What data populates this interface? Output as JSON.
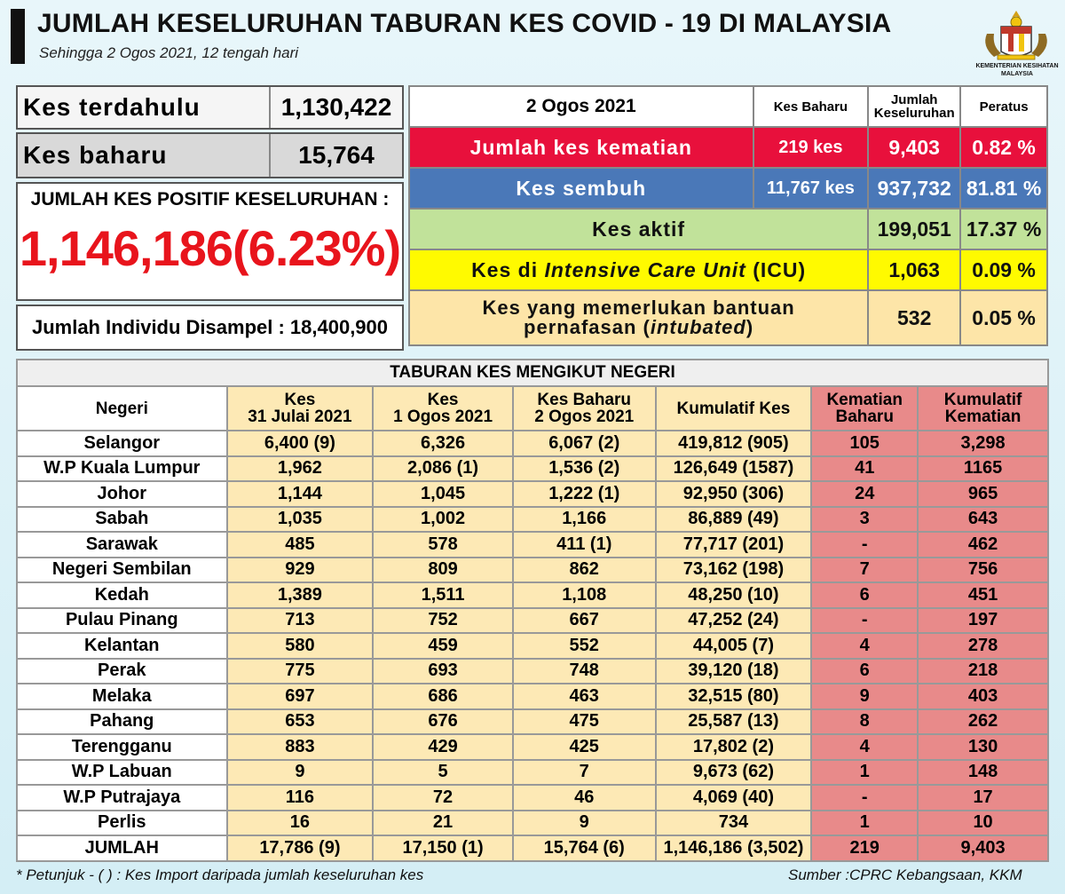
{
  "header": {
    "title": "JUMLAH KESELURUHAN TABURAN KES COVID - 19 DI MALAYSIA",
    "subtitle": "Sehingga 2 Ogos 2021, 12 tengah hari",
    "logo_caption": "KEMENTERIAN KESIHATAN MALAYSIA"
  },
  "left": {
    "prev_label": "Kes terdahulu",
    "prev_value": "1,130,422",
    "new_label": "Kes baharu",
    "new_value": "15,764",
    "positive_title": "JUMLAH KES POSITIF KESELURUHAN :",
    "positive_value": "1,146,186(6.23%)",
    "sample_text": "Jumlah Individu Disampel : 18,400,900"
  },
  "summary": {
    "date": "2 Ogos 2021",
    "col_new": "Kes Baharu",
    "col_total": "Jumlah Keseluruhan",
    "col_pct": "Peratus",
    "death": {
      "label": "Jumlah kes kematian",
      "new": "219 kes",
      "total": "9,403",
      "pct": "0.82 %"
    },
    "recovered": {
      "label": "Kes sembuh",
      "new": "11,767 kes",
      "total": "937,732",
      "pct": "81.81 %"
    },
    "active": {
      "label": "Kes aktif",
      "total": "199,051",
      "pct": "17.37 %"
    },
    "icu": {
      "label_a": "Kes di ",
      "label_b": "Intensive Care Unit",
      "label_c": " (ICU)",
      "total": "1,063",
      "pct": "0.09 %"
    },
    "intubated": {
      "label_a": "Kes yang memerlukan bantuan",
      "label_b": "pernafasan (",
      "label_c": "intubated",
      "label_d": ")",
      "total": "532",
      "pct": "0.05 %"
    }
  },
  "states": {
    "caption": "TABURAN KES MENGIKUT NEGERI",
    "headers": {
      "negeri": "Negeri",
      "c1a": "Kes",
      "c1b": "31 Julai 2021",
      "c2a": "Kes",
      "c2b": "1 Ogos 2021",
      "c3a": "Kes Baharu",
      "c3b": "2 Ogos 2021",
      "c4": "Kumulatif Kes",
      "c5a": "Kematian",
      "c5b": "Baharu",
      "c6a": "Kumulatif",
      "c6b": "Kematian"
    },
    "rows": [
      [
        "Selangor",
        "6,400 (9)",
        "6,326",
        "6,067 (2)",
        "419,812 (905)",
        "105",
        "3,298"
      ],
      [
        "W.P Kuala Lumpur",
        "1,962",
        "2,086 (1)",
        "1,536 (2)",
        "126,649 (1587)",
        "41",
        "1165"
      ],
      [
        "Johor",
        "1,144",
        "1,045",
        "1,222 (1)",
        "92,950 (306)",
        "24",
        "965"
      ],
      [
        "Sabah",
        "1,035",
        "1,002",
        "1,166",
        "86,889 (49)",
        "3",
        "643"
      ],
      [
        "Sarawak",
        "485",
        "578",
        "411 (1)",
        "77,717 (201)",
        "-",
        "462"
      ],
      [
        "Negeri Sembilan",
        "929",
        "809",
        "862",
        "73,162 (198)",
        "7",
        "756"
      ],
      [
        "Kedah",
        "1,389",
        "1,511",
        "1,108",
        "48,250 (10)",
        "6",
        "451"
      ],
      [
        "Pulau Pinang",
        "713",
        "752",
        "667",
        "47,252 (24)",
        "-",
        "197"
      ],
      [
        "Kelantan",
        "580",
        "459",
        "552",
        "44,005 (7)",
        "4",
        "278"
      ],
      [
        "Perak",
        "775",
        "693",
        "748",
        "39,120 (18)",
        "6",
        "218"
      ],
      [
        "Melaka",
        "697",
        "686",
        "463",
        "32,515 (80)",
        "9",
        "403"
      ],
      [
        "Pahang",
        "653",
        "676",
        "475",
        "25,587 (13)",
        "8",
        "262"
      ],
      [
        "Terengganu",
        "883",
        "429",
        "425",
        "17,802 (2)",
        "4",
        "130"
      ],
      [
        "W.P Labuan",
        "9",
        "5",
        "7",
        "9,673 (62)",
        "1",
        "148"
      ],
      [
        "W.P Putrajaya",
        "116",
        "72",
        "46",
        "4,069 (40)",
        "-",
        "17"
      ],
      [
        "Perlis",
        "16",
        "21",
        "9",
        "734",
        "1",
        "10"
      ]
    ],
    "total": [
      "JUMLAH",
      "17,786 (9)",
      "17,150 (1)",
      "15,764 (6)",
      "1,146,186 (3,502)",
      "219",
      "9,403"
    ]
  },
  "footer": {
    "note": "* Petunjuk  - (  ) : Kes Import daripada jumlah keseluruhan kes",
    "source": "Sumber :CPRC Kebangsaan,  KKM"
  }
}
